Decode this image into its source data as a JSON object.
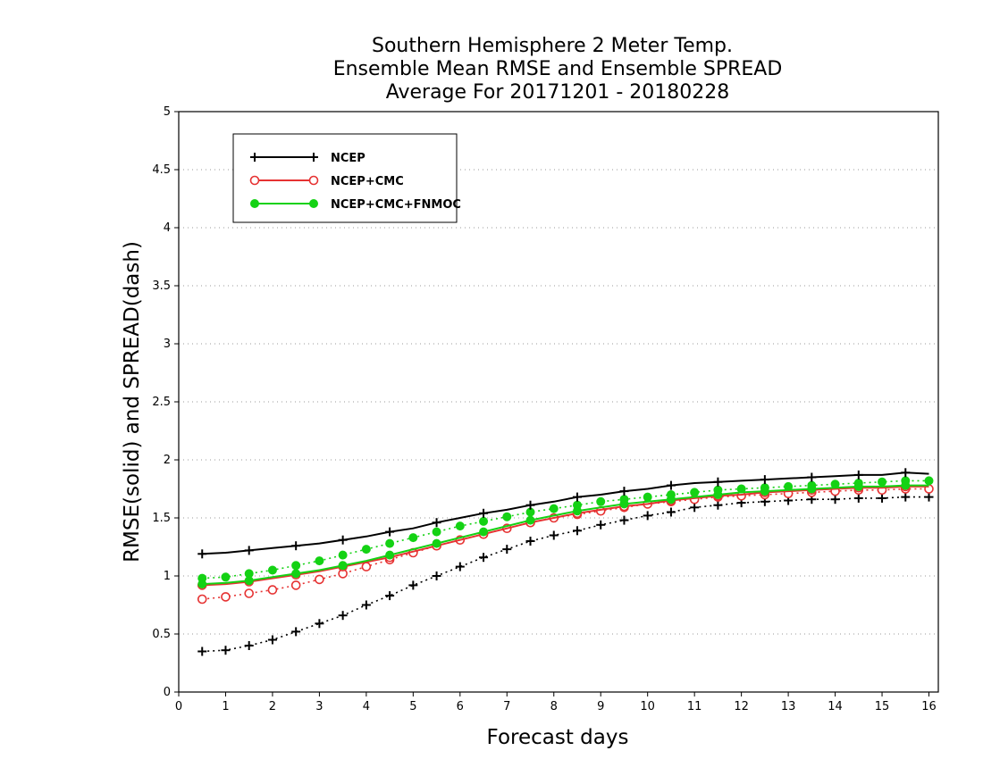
{
  "chart_data": {
    "type": "line",
    "title": [
      "Southern Hemisphere 2 Meter Temp.",
      "Ensemble Mean RMSE and Ensemble SPREAD",
      "Average For 20171201 - 20180228"
    ],
    "xlabel": "Forecast days",
    "ylabel": "RMSE(solid) and SPREAD(dash)",
    "xlim": [
      0,
      16.2
    ],
    "ylim": [
      0,
      5
    ],
    "xticks": [
      "0",
      "1",
      "2",
      "3",
      "4",
      "5",
      "6",
      "7",
      "8",
      "9",
      "10",
      "11",
      "12",
      "13",
      "14",
      "15",
      "16"
    ],
    "yticks": [
      "0",
      "0.5",
      "1",
      "1.5",
      "2",
      "2.5",
      "3",
      "3.5",
      "4",
      "4.5",
      "5"
    ],
    "grid": "horizontal-dotted",
    "legend": "top-left",
    "x": [
      0.5,
      1,
      1.5,
      2,
      2.5,
      3,
      3.5,
      4,
      4.5,
      5,
      5.5,
      6,
      6.5,
      7,
      7.5,
      8,
      8.5,
      9,
      9.5,
      10,
      10.5,
      11,
      11.5,
      12,
      12.5,
      13,
      13.5,
      14,
      14.5,
      15,
      15.5,
      16
    ],
    "series": [
      {
        "name": "NCEP",
        "color": "#000000",
        "marker": "plus",
        "rmse": [
          1.19,
          1.2,
          1.22,
          1.24,
          1.26,
          1.28,
          1.31,
          1.34,
          1.38,
          1.41,
          1.46,
          1.5,
          1.54,
          1.57,
          1.61,
          1.64,
          1.68,
          1.7,
          1.73,
          1.75,
          1.78,
          1.8,
          1.81,
          1.82,
          1.83,
          1.84,
          1.85,
          1.86,
          1.87,
          1.87,
          1.89,
          1.88
        ],
        "spread": [
          0.35,
          0.36,
          0.4,
          0.45,
          0.52,
          0.59,
          0.66,
          0.75,
          0.83,
          0.92,
          1.0,
          1.08,
          1.16,
          1.23,
          1.3,
          1.35,
          1.39,
          1.44,
          1.48,
          1.52,
          1.55,
          1.59,
          1.61,
          1.63,
          1.64,
          1.65,
          1.66,
          1.66,
          1.67,
          1.67,
          1.68,
          1.68
        ]
      },
      {
        "name": "NCEP+CMC",
        "color": "#e63232",
        "marker": "open-circle",
        "rmse": [
          0.92,
          0.93,
          0.95,
          0.98,
          1.01,
          1.04,
          1.08,
          1.12,
          1.16,
          1.21,
          1.26,
          1.31,
          1.36,
          1.41,
          1.46,
          1.5,
          1.54,
          1.57,
          1.6,
          1.62,
          1.65,
          1.67,
          1.69,
          1.7,
          1.72,
          1.73,
          1.74,
          1.75,
          1.76,
          1.76,
          1.77,
          1.77
        ],
        "spread": [
          0.8,
          0.82,
          0.85,
          0.88,
          0.92,
          0.97,
          1.02,
          1.08,
          1.14,
          1.2,
          1.26,
          1.31,
          1.36,
          1.41,
          1.46,
          1.5,
          1.53,
          1.56,
          1.59,
          1.62,
          1.64,
          1.66,
          1.68,
          1.69,
          1.7,
          1.71,
          1.72,
          1.73,
          1.74,
          1.74,
          1.75,
          1.75
        ]
      },
      {
        "name": "NCEP+CMC+FNMOC",
        "color": "#14d214",
        "marker": "filled-circle",
        "rmse": [
          0.93,
          0.94,
          0.96,
          0.99,
          1.02,
          1.05,
          1.09,
          1.13,
          1.18,
          1.23,
          1.28,
          1.33,
          1.38,
          1.43,
          1.48,
          1.52,
          1.56,
          1.59,
          1.62,
          1.64,
          1.66,
          1.68,
          1.7,
          1.72,
          1.73,
          1.74,
          1.75,
          1.76,
          1.77,
          1.77,
          1.78,
          1.78
        ],
        "spread": [
          0.98,
          0.99,
          1.02,
          1.05,
          1.09,
          1.13,
          1.18,
          1.23,
          1.28,
          1.33,
          1.38,
          1.43,
          1.47,
          1.51,
          1.55,
          1.58,
          1.61,
          1.64,
          1.66,
          1.68,
          1.7,
          1.72,
          1.74,
          1.75,
          1.76,
          1.77,
          1.78,
          1.79,
          1.8,
          1.81,
          1.82,
          1.82
        ]
      }
    ]
  }
}
